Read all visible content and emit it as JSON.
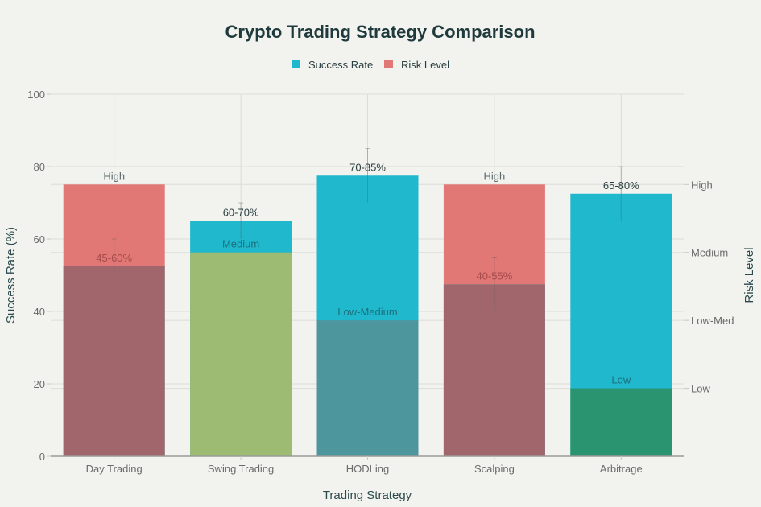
{
  "chart_data": {
    "type": "bar",
    "title": "Crypto Trading Strategy Comparison",
    "xlabel": "Trading Strategy",
    "ylabel": "Success Rate (%)",
    "y2label": "Risk Level",
    "ylim": [
      0,
      100
    ],
    "yticks": [
      0,
      20,
      40,
      60,
      80,
      100
    ],
    "y2lim": [
      0,
      5.33
    ],
    "y2ticks": [
      {
        "value": 1,
        "label": "Low"
      },
      {
        "value": 2,
        "label": "Low-Med"
      },
      {
        "value": 3,
        "label": "Medium"
      },
      {
        "value": 4,
        "label": "High"
      }
    ],
    "grid": true,
    "legend_position": "top",
    "legend": [
      {
        "name": "Success Rate",
        "color": "#1fb8cd"
      },
      {
        "name": "Risk Level",
        "color": "#e27876"
      }
    ],
    "categories": [
      "Day Trading",
      "Swing Trading",
      "HODLing",
      "Scalping",
      "Arbitrage"
    ],
    "series": [
      {
        "name": "Success Rate",
        "axis": "left",
        "values": [
          52.5,
          65,
          77.5,
          47.5,
          72.5
        ],
        "error_low": [
          45,
          60,
          70,
          40,
          65
        ],
        "error_high": [
          60,
          70,
          85,
          55,
          80
        ],
        "labels": [
          "45-60%",
          "60-70%",
          "70-85%",
          "40-55%",
          "65-80%"
        ],
        "color": "#1fb8cd"
      },
      {
        "name": "Risk Level",
        "axis": "right",
        "values": [
          4,
          3,
          2,
          4,
          1
        ],
        "labels": [
          "High",
          "Medium",
          "Low-Medium",
          "High",
          "Low"
        ],
        "colors": [
          "#e27876",
          "#a0c475",
          "#5d878f",
          "#e27876",
          "#2a9470"
        ],
        "overlap_colors": [
          "#a0666b",
          "#9dbb72",
          "#4d969e",
          "#a0666b",
          "#2a9470"
        ]
      }
    ]
  }
}
